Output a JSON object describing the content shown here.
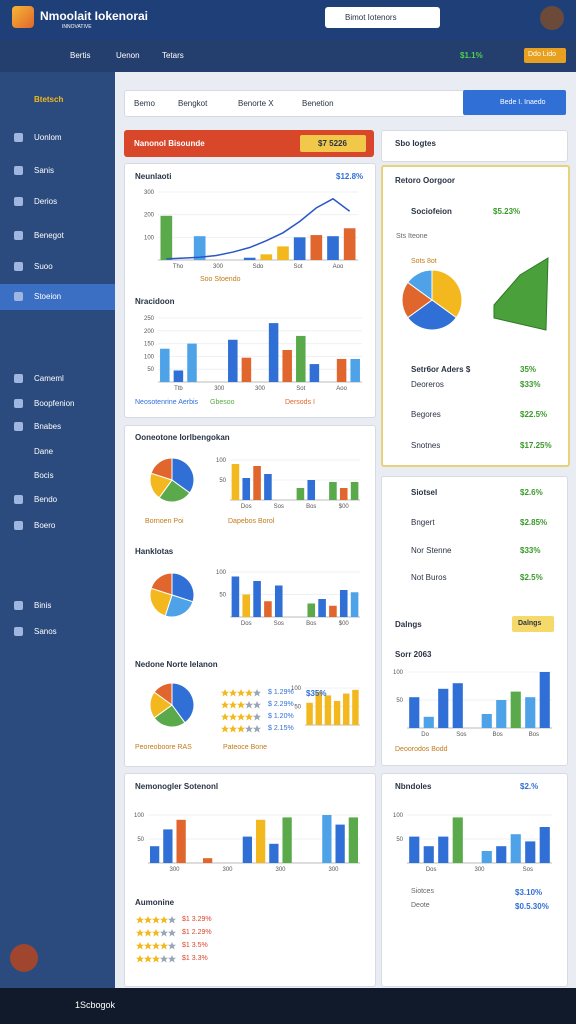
{
  "header": {
    "title": "Nmoolait Iokenorai",
    "tagline": "INNOVATIVE",
    "search": "Bimot Iotenors"
  },
  "nav": {
    "items": [
      "Bertis",
      "Uenon",
      "Tetars"
    ],
    "status": "$1.1%",
    "button": "Ddo Lido"
  },
  "sidebar": {
    "user": "Btetsch",
    "items": [
      "Uonlom",
      "Sanis",
      "Derios",
      "Benegot",
      "Suoo",
      "Stoeion",
      "Cameml",
      "Boopfenion",
      "Bnabes",
      "Dane",
      "Bocis",
      "Bendo",
      "Boero",
      "Binis",
      "Sanos"
    ]
  },
  "toolbar": {
    "tabs": [
      "Bemo",
      "Bengkot",
      "Benorte X",
      "Benetion"
    ],
    "button": "Bede I. Inaedo"
  },
  "summary": {
    "title": "Nanonol Bisounde",
    "chip": "$7 5226"
  },
  "side_panel": {
    "title": "Sbo Iogtes",
    "card_title": "Retoro Oorgoor",
    "metric": "Sociofeion",
    "metric_value": "$5.23%",
    "sub": "Sts Iteone",
    "rows": [
      {
        "label": "Setr6or Aders $",
        "value": "35%"
      },
      {
        "label": "Deoreros",
        "value": "$33%"
      },
      {
        "label": "Begores",
        "value": "$22.5%"
      },
      {
        "label": "Snotnes",
        "value": "$17.25%"
      }
    ],
    "rows2": [
      {
        "label": "Siotsel",
        "value": "$2.6%"
      },
      {
        "label": "Bngert",
        "value": "$2.85%"
      },
      {
        "label": "Nor Stenne",
        "value": "$33%"
      },
      {
        "label": "Not Buros",
        "value": "$2.5%"
      }
    ],
    "chip": "Dalngs",
    "rows3": [
      {
        "label": "Siotces",
        "value": "$3.10%"
      },
      {
        "label": "Deote",
        "value": "$0.5.30%"
      }
    ]
  },
  "ratings": {
    "title": "Aumonine",
    "list_a": [
      "$ 1.29%",
      "$ 2.29%",
      "$ 1.20%",
      "$ 2.15%"
    ],
    "list_b": [
      "$1 3.29%",
      "$1 2.29%",
      "$1 3.5%",
      "$1 3.3%"
    ]
  },
  "charts": [
    {
      "type": "bar",
      "title": "Neunlaoti",
      "badge": "$12.8%",
      "ylim": [
        0,
        300
      ],
      "yticks": [
        100,
        200,
        300
      ],
      "xlabels": [
        "Tho",
        "300",
        "Sdo",
        "Sot",
        "Aoo"
      ],
      "caption": "Soo Stoendo",
      "values": [
        195,
        0,
        105,
        0,
        0,
        10,
        25,
        60,
        100,
        110,
        105,
        140
      ],
      "colors": [
        "#5aa94a",
        "#5aa94a",
        "#4ea3e8",
        "#4ea3e8",
        "#2f6fd6",
        "#2f6fd6",
        "#f2b81e",
        "#f2b81e",
        "#2f6fd6",
        "#e0662e",
        "#2f6fd6",
        "#e0662e"
      ],
      "line": [
        5,
        8,
        12,
        20,
        35,
        55,
        85,
        120,
        170,
        230,
        270,
        215
      ],
      "line_color": "#2a56c8"
    },
    {
      "type": "bar",
      "title": "Nracidoon",
      "ylim": [
        0,
        250
      ],
      "yticks": [
        50,
        100,
        150,
        200,
        250
      ],
      "xlabels": [
        "Ttb",
        "300",
        "300",
        "Sot",
        "Aoo"
      ],
      "legend": [
        "Neosotenrine Aerbis",
        "Gbesoo",
        "Dersods I"
      ],
      "values": [
        130,
        45,
        150,
        0,
        0,
        165,
        95,
        0,
        230,
        125,
        180,
        70,
        0,
        90,
        90
      ],
      "colors": [
        "#4ea3e8",
        "#2f6fd6",
        "#4ea3e8",
        "#2f6fd6",
        "#2f6fd6",
        "#2f6fd6",
        "#e0662e",
        "#2f6fd6",
        "#2f6fd6",
        "#e0662e",
        "#5aa94a",
        "#2f6fd6",
        "#2f6fd6",
        "#e0662e",
        "#4ea3e8"
      ]
    },
    {
      "type": "pie",
      "title": "Ooneotone Iorlbengokan",
      "caption": "Bornoen Poi",
      "values": [
        35,
        25,
        20,
        20
      ],
      "colors": [
        "#2f6fd6",
        "#5aa94a",
        "#f2b81e",
        "#e0662e"
      ]
    },
    {
      "type": "bar",
      "ylim": [
        0,
        100
      ],
      "yticks": [
        50,
        100
      ],
      "xlabels": [
        "Dos",
        "Sos",
        "Bos",
        "$00"
      ],
      "caption": "Dapebos Borol",
      "values": [
        90,
        55,
        85,
        65,
        0,
        0,
        30,
        50,
        0,
        45,
        30,
        45
      ],
      "colors": [
        "#f2b81e",
        "#2f6fd6",
        "#e0662e",
        "#2f6fd6",
        "#2f6fd6",
        "#2f6fd6",
        "#5aa94a",
        "#2f6fd6",
        "#2f6fd6",
        "#5aa94a",
        "#e0662e",
        "#5aa94a"
      ]
    },
    {
      "type": "pie",
      "title": "Hanklotas",
      "values": [
        30,
        25,
        25,
        20
      ],
      "colors": [
        "#2f6fd6",
        "#4ea3e8",
        "#f2b81e",
        "#e0662e"
      ]
    },
    {
      "type": "bar",
      "ylim": [
        0,
        100
      ],
      "yticks": [
        50,
        100
      ],
      "xlabels": [
        "Dos",
        "Sos",
        "Bos",
        "$00"
      ],
      "values": [
        90,
        50,
        80,
        35,
        70,
        0,
        0,
        30,
        40,
        25,
        60,
        55
      ],
      "colors": [
        "#2f6fd6",
        "#f2b81e",
        "#2f6fd6",
        "#e0662e",
        "#2f6fd6",
        "#2f6fd6",
        "#2f6fd6",
        "#5aa94a",
        "#2f6fd6",
        "#e0662e",
        "#2f6fd6",
        "#4ea3e8"
      ]
    },
    {
      "type": "pie",
      "title": "Nedone Norte Ielanon",
      "caption": "Peoreoboore RAS",
      "values": [
        40,
        25,
        20,
        15
      ],
      "colors": [
        "#2f6fd6",
        "#5aa94a",
        "#f2b81e",
        "#e0662e"
      ]
    },
    {
      "type": "bar",
      "ylim": [
        0,
        100
      ],
      "yticks": [
        50,
        100
      ],
      "caption": "Pateoce Bone",
      "badge": "$35%",
      "values": [
        60,
        90,
        80,
        65,
        85,
        95
      ],
      "colors": [
        "#f2b81e",
        "#f2b81e",
        "#f2b81e",
        "#f2b81e",
        "#f2b81e",
        "#f2b81e"
      ]
    },
    {
      "type": "bar",
      "title": "Nemonogler Sotenonl",
      "ylim": [
        0,
        100
      ],
      "yticks": [
        50,
        100
      ],
      "xlabels": [
        "300",
        "300",
        "300",
        "300"
      ],
      "values": [
        35,
        70,
        90,
        0,
        10,
        0,
        0,
        55,
        90,
        40,
        95,
        0,
        0,
        100,
        80,
        95
      ],
      "colors": [
        "#2f6fd6",
        "#2f6fd6",
        "#e0662e",
        "#2f6fd6",
        "#e0662e",
        "#2f6fd6",
        "#f2b81e",
        "#2f6fd6",
        "#f2b81e",
        "#2f6fd6",
        "#5aa94a",
        "#2f6fd6",
        "#2f6fd6",
        "#4ea3e8",
        "#2f6fd6",
        "#5aa94a"
      ]
    },
    {
      "type": "pie",
      "caption": "Sots 8ot",
      "values": [
        35,
        30,
        20,
        15
      ],
      "colors": [
        "#f2b81e",
        "#2f6fd6",
        "#e0662e",
        "#4ea3e8"
      ]
    },
    {
      "type": "bar",
      "title": "Sorr 2063",
      "ylim": [
        0,
        100
      ],
      "yticks": [
        50,
        100
      ],
      "xlabels": [
        "Do",
        "Sos",
        "Bos",
        "Bos"
      ],
      "caption": "Deoorodos Bodd",
      "values": [
        55,
        20,
        70,
        80,
        0,
        25,
        50,
        65,
        55,
        100
      ],
      "colors": [
        "#2f6fd6",
        "#4ea3e8",
        "#2f6fd6",
        "#2f6fd6",
        "#2f6fd6",
        "#4ea3e8",
        "#4ea3e8",
        "#5aa94a",
        "#4ea3e8",
        "#2f6fd6"
      ]
    },
    {
      "type": "bar",
      "title": "Nbndoles",
      "badge": "$2.% ",
      "ylim": [
        0,
        100
      ],
      "yticks": [
        50,
        100
      ],
      "xlabels": [
        "Dos",
        "300",
        "Sos"
      ],
      "values": [
        55,
        35,
        55,
        95,
        0,
        25,
        35,
        60,
        45,
        75
      ],
      "colors": [
        "#2f6fd6",
        "#2f6fd6",
        "#2f6fd6",
        "#5aa94a",
        "#2f6fd6",
        "#4ea3e8",
        "#2f6fd6",
        "#4ea3e8",
        "#2f6fd6",
        "#2f6fd6"
      ]
    }
  ],
  "taskbar": {
    "label": "1Scbogok"
  }
}
